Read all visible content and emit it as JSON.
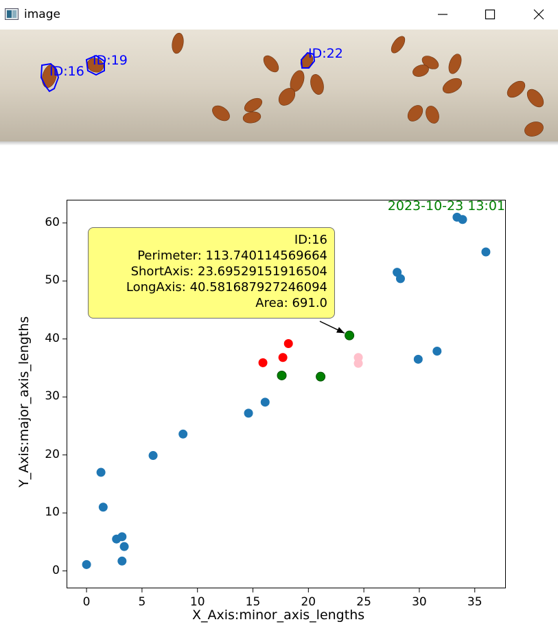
{
  "window": {
    "title": "image",
    "icon": "image-app-icon",
    "controls": [
      "minimize-icon",
      "maximize-icon",
      "close-icon"
    ]
  },
  "photo": {
    "background_color": "#d9d2c4",
    "contour_color": "#0000ff",
    "labels": [
      "ID:16",
      "ID:19",
      "ID:22"
    ]
  },
  "chart_data": {
    "type": "scatter",
    "xlabel": "X_Axis:minor_axis_lengths",
    "ylabel": "Y_Axis:major_axis_lengths",
    "xlim": [
      -1.8,
      37.8
    ],
    "ylim": [
      -3.0,
      64.0
    ],
    "x_ticks": [
      0,
      5,
      10,
      15,
      20,
      25,
      30,
      35
    ],
    "y_ticks": [
      0,
      10,
      20,
      30,
      40,
      50,
      60
    ],
    "grid": false,
    "annotation_text": "2023-10-23 13:01",
    "annotation_color": "#008000",
    "points": [
      {
        "x": 0.0,
        "y": 1.1,
        "color": "#1f77b4"
      },
      {
        "x": 1.3,
        "y": 17.0,
        "color": "#1f77b4"
      },
      {
        "x": 1.5,
        "y": 11.0,
        "color": "#1f77b4"
      },
      {
        "x": 2.7,
        "y": 5.5,
        "color": "#1f77b4"
      },
      {
        "x": 3.2,
        "y": 5.9,
        "color": "#1f77b4"
      },
      {
        "x": 3.4,
        "y": 4.2,
        "color": "#1f77b4"
      },
      {
        "x": 3.2,
        "y": 1.7,
        "color": "#1f77b4"
      },
      {
        "x": 6.0,
        "y": 19.9,
        "color": "#1f77b4"
      },
      {
        "x": 8.7,
        "y": 23.6,
        "color": "#1f77b4"
      },
      {
        "x": 14.6,
        "y": 27.2,
        "color": "#1f77b4"
      },
      {
        "x": 16.1,
        "y": 29.1,
        "color": "#1f77b4"
      },
      {
        "x": 15.9,
        "y": 35.9,
        "color": "#ff0000"
      },
      {
        "x": 17.7,
        "y": 36.8,
        "color": "#ff0000"
      },
      {
        "x": 18.2,
        "y": 39.2,
        "color": "#ff0000"
      },
      {
        "x": 17.6,
        "y": 33.7,
        "color": "#008000"
      },
      {
        "x": 21.1,
        "y": 33.5,
        "color": "#008000"
      },
      {
        "x": 23.7,
        "y": 40.6,
        "color": "#008000"
      },
      {
        "x": 24.5,
        "y": 36.8,
        "color": "#ffc0cb"
      },
      {
        "x": 24.5,
        "y": 35.8,
        "color": "#ffc0cb"
      },
      {
        "x": 28.0,
        "y": 51.5,
        "color": "#1f77b4"
      },
      {
        "x": 28.3,
        "y": 50.4,
        "color": "#1f77b4"
      },
      {
        "x": 29.9,
        "y": 36.5,
        "color": "#1f77b4"
      },
      {
        "x": 31.6,
        "y": 37.9,
        "color": "#1f77b4"
      },
      {
        "x": 33.4,
        "y": 61.0,
        "color": "#1f77b4"
      },
      {
        "x": 33.9,
        "y": 60.6,
        "color": "#1f77b4"
      },
      {
        "x": 36.0,
        "y": 55.0,
        "color": "#1f77b4"
      }
    ],
    "tooltip": {
      "target": {
        "x": 23.7,
        "y": 40.6
      },
      "lines": [
        "ID:16",
        "Perimeter: 113.740114569664",
        "ShortAxis: 23.69529151916504",
        "LongAxis: 40.581687927246094",
        "Area: 691.0"
      ],
      "background": "#ffff80"
    }
  }
}
